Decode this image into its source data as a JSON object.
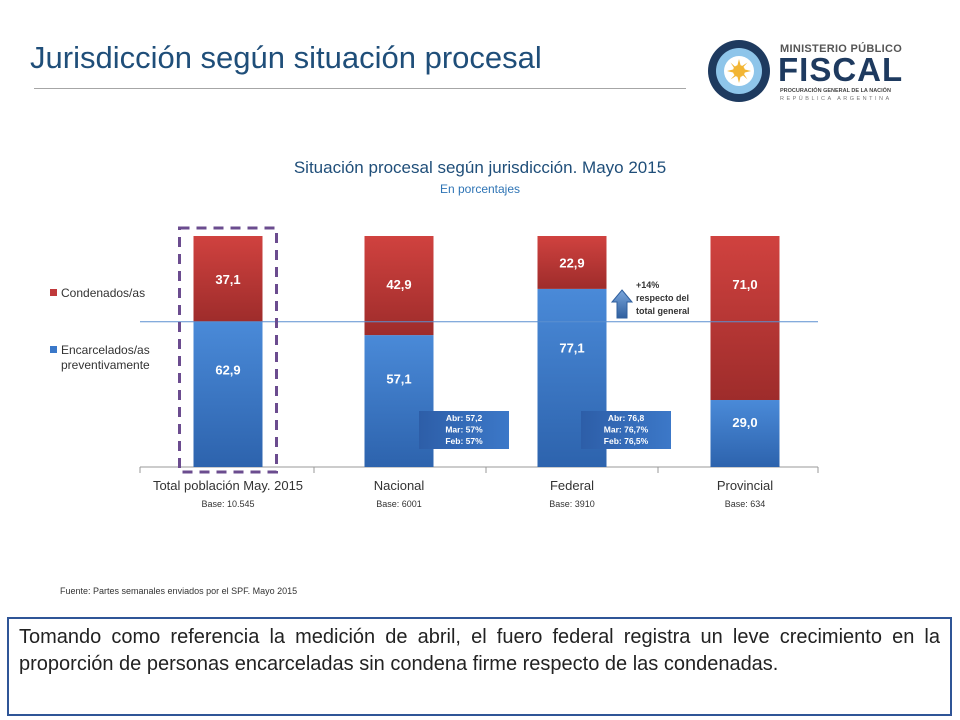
{
  "page": {
    "title": "Jurisdicción según situación procesal"
  },
  "logo": {
    "line1": "MINISTERIO PÚBLICO",
    "line2": "FISCAL",
    "line3": "PROCURACIÓN GENERAL DE LA NACIÓN",
    "line4": "REPÚBLICA ARGENTINA"
  },
  "chart_data": {
    "type": "bar",
    "stacked": true,
    "title": "Situación procesal según jurisdicción. Mayo 2015",
    "subtitle": "En porcentajes",
    "categories": [
      "Total población May. 2015",
      "Nacional",
      "Federal",
      "Provincial"
    ],
    "bases": [
      "Base: 10.545",
      "Base: 6001",
      "Base: 3910",
      "Base: 634"
    ],
    "series": [
      {
        "name": "Encarcelados/as preventivamente",
        "values": [
          62.9,
          57.1,
          77.1,
          29.0
        ],
        "labels": [
          "62,9",
          "57,1",
          "77,1",
          "29,0"
        ],
        "color": "#3a78c9"
      },
      {
        "name": "Condenados/as",
        "values": [
          37.1,
          42.9,
          22.9,
          71.0
        ],
        "labels": [
          "37,1",
          "42,9",
          "22,9",
          "71,0"
        ],
        "color": "#c0393b"
      }
    ],
    "reference_line": {
      "value": 62.9,
      "color": "#5b8fd0"
    },
    "legend_position": "left",
    "ylim": [
      0,
      100
    ],
    "highlight_category": "Total población May. 2015",
    "annotations": [
      {
        "category": "Nacional",
        "lines": [
          "Abr: 57,2",
          "Mar: 57%",
          "Feb: 57%"
        ]
      },
      {
        "category": "Federal",
        "lines": [
          "Abr: 76,8",
          "Mar: 76,7%",
          "Feb: 76,5%"
        ]
      }
    ],
    "change_note": {
      "category": "Federal",
      "lines": [
        "+14%",
        "respecto del",
        "total general"
      ],
      "arrow": "up"
    }
  },
  "source": "Fuente: Partes semanales enviados por el SPF. Mayo 2015",
  "conclusion": "Tomando como referencia la medición de abril, el fuero federal registra un leve crecimiento en la proporción de personas encarceladas sin condena firme respecto de las condenadas."
}
